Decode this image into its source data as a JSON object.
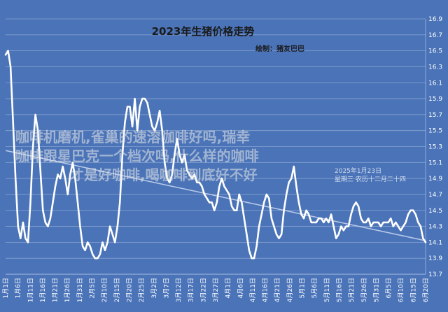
{
  "chart_data": {
    "type": "line",
    "title": "2023年生猪价格走势",
    "subtitle": "绘制：猪友巴巴",
    "xlabel": "",
    "ylabel": "",
    "ylim": [
      13.7,
      16.9
    ],
    "y_ticks": [
      "13.7",
      "13.9",
      "14.1",
      "14.3",
      "14.5",
      "14.7",
      "14.9",
      "15.1",
      "15.3",
      "15.5",
      "15.7",
      "15.9",
      "16.1",
      "16.3",
      "16.5",
      "16.7",
      "16.9"
    ],
    "x_tick_labels": [
      "1月1日",
      "1月6日",
      "1月11日",
      "1月16日",
      "1月21日",
      "1月26日",
      "1月31日",
      "2月5日",
      "2月10日",
      "2月15日",
      "2月20日",
      "2月25日",
      "3月2日",
      "3月7日",
      "3月12日",
      "3月17日",
      "3月22日",
      "3月27日",
      "4月1日",
      "4月6日",
      "4月11日",
      "4月16日",
      "4月21日",
      "4月26日",
      "5月1日",
      "5月6日",
      "5月11日",
      "5月16日",
      "5月21日",
      "5月26日",
      "5月31日",
      "6月5日",
      "6月10日",
      "6月15日",
      "6月20日"
    ],
    "grid": true,
    "line_color": "#ffffff",
    "background_color": "#4a73b8",
    "trend_color": "#c9d6ee",
    "series": [
      {
        "values": [
          16.45,
          16.5,
          16.3,
          15.6,
          14.9,
          14.3,
          14.15,
          14.35,
          14.15,
          14.1,
          14.6,
          15.3,
          15.7,
          15.5,
          15.0,
          14.5,
          14.35,
          14.3,
          14.4,
          14.6,
          14.8,
          14.95,
          14.9,
          15.05,
          14.9,
          14.7,
          14.95,
          15.1,
          14.9,
          14.6,
          14.3,
          14.05,
          14.0,
          14.1,
          14.05,
          13.95,
          13.9,
          13.9,
          13.95,
          14.1,
          14.0,
          14.1,
          14.3,
          14.2,
          14.1,
          14.3,
          14.6,
          15.2,
          15.6,
          15.8,
          15.8,
          15.55,
          15.9,
          15.5,
          15.8,
          15.9,
          15.9,
          15.85,
          15.7,
          15.55,
          15.5,
          15.6,
          15.75,
          15.5,
          15.1,
          14.9,
          14.85,
          14.95,
          15.2,
          15.4,
          15.2,
          15.1,
          15.2,
          15.0,
          14.95,
          14.9,
          14.95,
          14.85,
          14.85,
          14.8,
          14.7,
          14.65,
          14.6,
          14.6,
          14.5,
          14.6,
          14.8,
          14.9,
          14.8,
          14.75,
          14.7,
          14.55,
          14.5,
          14.5,
          14.7,
          14.6,
          14.4,
          14.2,
          14.0,
          13.9,
          13.9,
          14.05,
          14.3,
          14.45,
          14.6,
          14.7,
          14.65,
          14.4,
          14.3,
          14.2,
          14.15,
          14.2,
          14.5,
          14.7,
          14.85,
          14.9,
          15.05,
          14.8,
          14.6,
          14.45,
          14.4,
          14.5,
          14.45,
          14.35,
          14.35,
          14.35,
          14.4,
          14.4,
          14.35,
          14.4,
          14.35,
          14.45,
          14.3,
          14.15,
          14.2,
          14.3,
          14.25,
          14.3,
          14.3,
          14.45,
          14.55,
          14.6,
          14.55,
          14.4,
          14.35,
          14.35,
          14.4,
          14.3,
          14.35,
          14.35,
          14.35,
          14.3,
          14.35,
          14.35,
          14.35,
          14.4,
          14.3,
          14.35,
          14.3,
          14.25,
          14.3,
          14.35,
          14.45,
          14.5,
          14.5,
          14.45,
          14.35,
          14.3,
          14.15,
          14.1
        ]
      }
    ],
    "trendline": [
      15.25,
      14.12
    ]
  },
  "watermark": {
    "line1": "咖啡机磨机,雀巢的速溶咖啡好吗,瑞幸",
    "line2": "咖啡跟星巴克一个档次吗,什么样的咖啡",
    "line3": "才是好咖啡,喝咖啡到底好不好",
    "stamp1": "2025年1月23日",
    "stamp2": "星期三 农历十二月二十四"
  }
}
